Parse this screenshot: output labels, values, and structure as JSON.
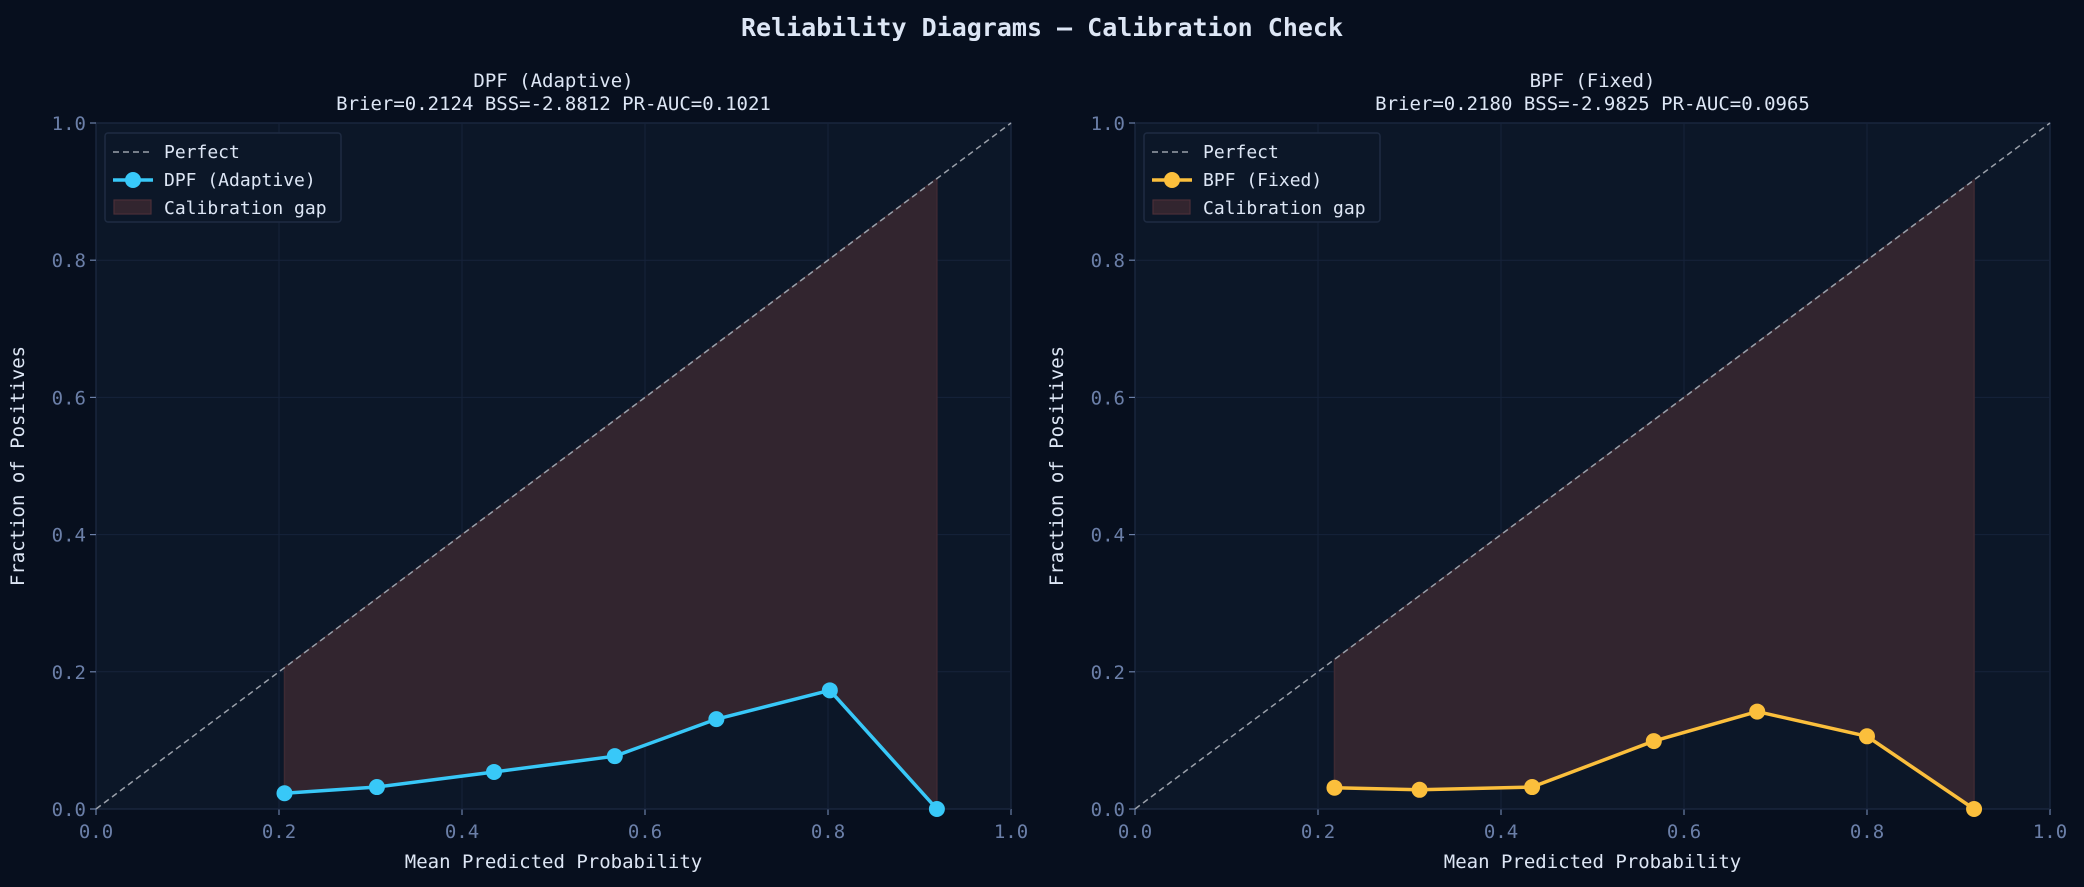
{
  "title": "Reliability Diagrams — Calibration Check",
  "colors": {
    "background": "#070f1e",
    "axes_bg": "#0c1728",
    "grid": "#16233a",
    "perfect": "#9aa0aa",
    "gap": "#32252f",
    "tick": "#6b7fa8",
    "text": "#dde6f5"
  },
  "chart_data": [
    {
      "type": "line",
      "title": "DPF (Adaptive)",
      "subtitle": "Brier=0.2124  BSS=-2.8812  PR-AUC=0.1021",
      "xlabel": "Mean Predicted Probability",
      "ylabel": "Fraction of Positives",
      "xlim": [
        0,
        1
      ],
      "ylim": [
        0,
        1
      ],
      "xticks": [
        "0.0",
        "0.2",
        "0.4",
        "0.6",
        "0.8",
        "1.0"
      ],
      "yticks": [
        "0.0",
        "0.2",
        "0.4",
        "0.6",
        "0.8",
        "1.0"
      ],
      "grid": true,
      "legend": {
        "placement": "top-left",
        "entries": [
          "Perfect",
          "DPF (Adaptive)",
          "Calibration gap"
        ]
      },
      "series": [
        {
          "name": "DPF (Adaptive)",
          "color": "#38c8f8",
          "x": [
            0.206,
            0.307,
            0.435,
            0.567,
            0.678,
            0.802,
            0.919
          ],
          "y": [
            0.023,
            0.032,
            0.054,
            0.077,
            0.131,
            0.173,
            0.0
          ]
        }
      ]
    },
    {
      "type": "line",
      "title": "BPF (Fixed)",
      "subtitle": "Brier=0.2180  BSS=-2.9825  PR-AUC=0.0965",
      "xlabel": "Mean Predicted Probability",
      "ylabel": "Fraction of Positives",
      "xlim": [
        0,
        1
      ],
      "ylim": [
        0,
        1
      ],
      "xticks": [
        "0.0",
        "0.2",
        "0.4",
        "0.6",
        "0.8",
        "1.0"
      ],
      "yticks": [
        "0.0",
        "0.2",
        "0.4",
        "0.6",
        "0.8",
        "1.0"
      ],
      "grid": true,
      "legend": {
        "placement": "top-left",
        "entries": [
          "Perfect",
          "BPF (Fixed)",
          "Calibration gap"
        ]
      },
      "series": [
        {
          "name": "BPF (Fixed)",
          "color": "#fbbf3c",
          "x": [
            0.218,
            0.311,
            0.434,
            0.567,
            0.68,
            0.8,
            0.917
          ],
          "y": [
            0.031,
            0.028,
            0.032,
            0.099,
            0.142,
            0.106,
            0.0
          ]
        }
      ]
    }
  ]
}
